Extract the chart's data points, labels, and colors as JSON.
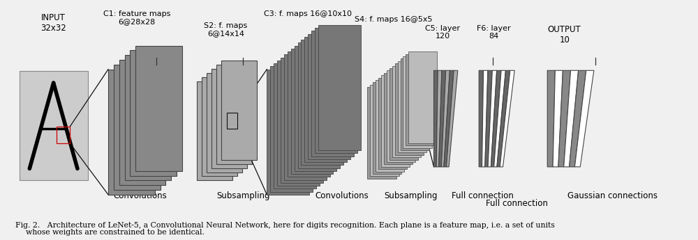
{
  "bg": "#f0f0f0",
  "fig_caption_line1": "Fig. 2.   Architecture of LeNet-5, a Convolutional Neural Network, here for digits recognition. Each plane is a feature map, i.e. a set of units",
  "fig_caption_line2": "        whose weights are constrained to be identical.",
  "input_label": "INPUT\n32x32",
  "c1_label": "C1: feature maps\n6@28x28",
  "s2_label": "S2: f. maps\n6@14x14",
  "c3_label": "C3: f. maps 16@10x10",
  "s4_label": "S4: f. maps 16@5x5",
  "c5_label": "C5: layer\n120",
  "f6_label": "F6: layer\n84",
  "out_label": "OUTPUT\n10",
  "bot_conv1": "Convolutions",
  "bot_sub1": "Subsampling",
  "bot_conv2": "Convolutions",
  "bot_sub2": "Subsampling",
  "bot_full1": "Full connection",
  "bot_full2": "Full connection",
  "bot_gauss": "Gaussian connections",
  "dark_gray": "#666666",
  "mid_gray": "#999999",
  "light_gray": "#bbbbbb",
  "input_gray": "#cccccc",
  "white": "#ffffff",
  "black": "#000000",
  "red": "#cc0000"
}
